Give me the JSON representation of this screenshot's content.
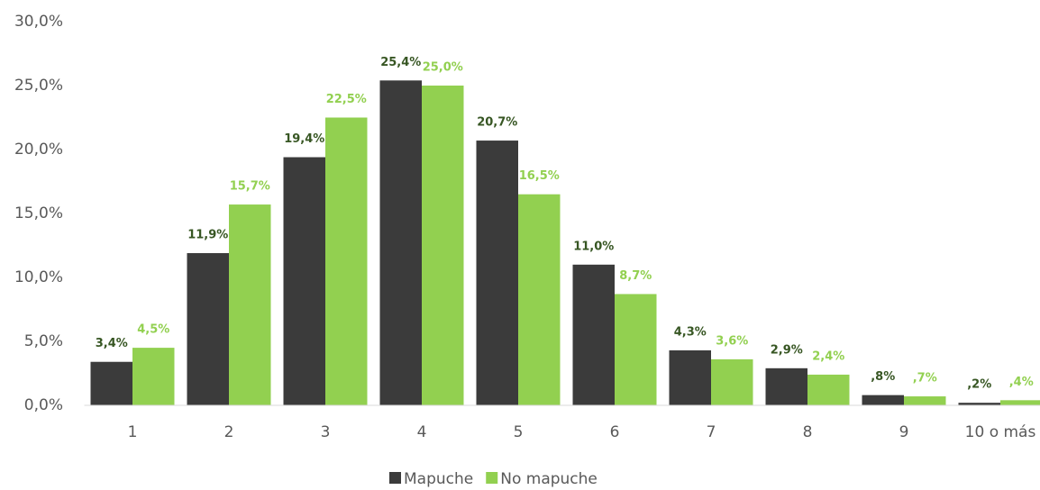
{
  "chart_data": {
    "type": "bar",
    "categories": [
      "1",
      "2",
      "3",
      "4",
      "5",
      "6",
      "7",
      "8",
      "9",
      "10 o más"
    ],
    "series": [
      {
        "name": "Mapuche",
        "color": "#3b3b3b",
        "label_color": "#375623",
        "values": [
          3.4,
          11.9,
          19.4,
          25.4,
          20.7,
          11.0,
          4.3,
          2.9,
          0.8,
          0.2
        ],
        "value_labels": [
          "3,4%",
          "11,9%",
          "19,4%",
          "25,4%",
          "20,7%",
          "11,0%",
          "4,3%",
          "2,9%",
          ",8%",
          ",2%"
        ]
      },
      {
        "name": "No mapuche",
        "color": "#92d050",
        "label_color": "#92d050",
        "values": [
          4.5,
          15.7,
          22.5,
          25.0,
          16.5,
          8.7,
          3.6,
          2.4,
          0.7,
          0.4
        ],
        "value_labels": [
          "4,5%",
          "15,7%",
          "22,5%",
          "25,0%",
          "16,5%",
          "8,7%",
          "3,6%",
          "2,4%",
          ",7%",
          ",4%"
        ]
      }
    ],
    "ylim": [
      0,
      30
    ],
    "yticks": [
      {
        "value": 0,
        "label": "0,0%"
      },
      {
        "value": 5,
        "label": "5,0%"
      },
      {
        "value": 10,
        "label": "10,0%"
      },
      {
        "value": 15,
        "label": "15,0%"
      },
      {
        "value": 20,
        "label": "20,0%"
      },
      {
        "value": 25,
        "label": "25,0%"
      },
      {
        "value": 30,
        "label": "30,0%"
      }
    ],
    "grid": false,
    "legend": "bottom"
  }
}
